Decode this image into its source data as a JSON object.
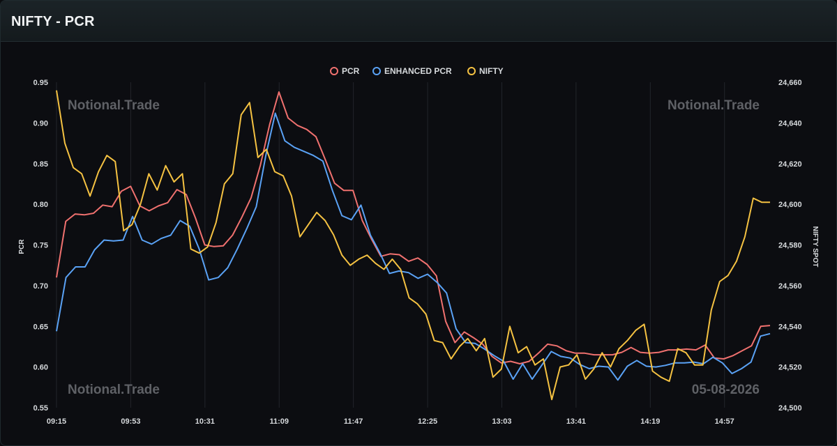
{
  "header": {
    "title": "NIFTY - PCR"
  },
  "watermarks": {
    "top_left": "Notional.Trade",
    "top_right": "Notional.Trade",
    "bottom_left": "Notional.Trade",
    "bottom_right": "05-08-2026"
  },
  "colors": {
    "background": "#0c0d11",
    "grid": "#22252b",
    "pcr": "#f0716f",
    "enhanced_pcr": "#5aa2f5",
    "nifty": "#f5c242"
  },
  "chart_data": {
    "type": "line",
    "title": "",
    "legend_position": "top-center",
    "grid": true,
    "x_tick_labels": [
      "09:15",
      "09:53",
      "10:31",
      "11:09",
      "11:47",
      "12:25",
      "13:03",
      "13:41",
      "14:19",
      "14:57"
    ],
    "x_count": 101,
    "left_axis": {
      "label": "PCR",
      "ylim": [
        0.55,
        0.95
      ],
      "ticks": [
        "0.55",
        "0.60",
        "0.65",
        "0.70",
        "0.75",
        "0.80",
        "0.85",
        "0.90",
        "0.95"
      ]
    },
    "right_axis": {
      "label": "NIFTY SPOT",
      "ylim": [
        24500,
        24660
      ],
      "ticks": [
        "24,500",
        "24,520",
        "24,540",
        "24,560",
        "24,580",
        "24,600",
        "24,620",
        "24,640",
        "24,660"
      ]
    },
    "series": [
      {
        "name": "PCR",
        "axis": "left",
        "values": [
          0.71,
          0.779,
          0.788,
          0.787,
          0.789,
          0.799,
          0.797,
          0.816,
          0.822,
          0.798,
          0.792,
          0.798,
          0.802,
          0.818,
          0.812,
          0.783,
          0.75,
          0.748,
          0.749,
          0.762,
          0.784,
          0.808,
          0.848,
          0.898,
          0.938,
          0.906,
          0.897,
          0.892,
          0.883,
          0.855,
          0.826,
          0.817,
          0.817,
          0.78,
          0.757,
          0.736,
          0.739,
          0.738,
          0.73,
          0.734,
          0.726,
          0.712,
          0.656,
          0.63,
          0.643,
          0.636,
          0.628,
          0.613,
          0.605,
          0.607,
          0.604,
          0.607,
          0.617,
          0.628,
          0.626,
          0.62,
          0.617,
          0.617,
          0.615,
          0.615,
          0.615,
          0.618,
          0.624,
          0.618,
          0.617,
          0.618,
          0.621,
          0.621,
          0.622,
          0.621,
          0.627,
          0.611,
          0.61,
          0.614,
          0.62,
          0.626,
          0.65,
          0.651
        ]
      },
      {
        "name": "ENHANCED PCR",
        "axis": "left",
        "values": [
          0.644,
          0.71,
          0.723,
          0.723,
          0.744,
          0.756,
          0.755,
          0.756,
          0.785,
          0.756,
          0.751,
          0.758,
          0.762,
          0.78,
          0.773,
          0.745,
          0.707,
          0.71,
          0.722,
          0.745,
          0.77,
          0.797,
          0.86,
          0.912,
          0.878,
          0.87,
          0.865,
          0.86,
          0.853,
          0.817,
          0.786,
          0.781,
          0.799,
          0.762,
          0.74,
          0.715,
          0.718,
          0.716,
          0.709,
          0.714,
          0.704,
          0.691,
          0.647,
          0.63,
          0.629,
          0.622,
          0.614,
          0.607,
          0.585,
          0.604,
          0.585,
          0.602,
          0.619,
          0.613,
          0.611,
          0.603,
          0.598,
          0.601,
          0.6,
          0.584,
          0.601,
          0.608,
          0.601,
          0.6,
          0.602,
          0.605,
          0.605,
          0.606,
          0.604,
          0.612,
          0.605,
          0.592,
          0.598,
          0.606,
          0.638,
          0.641
        ]
      },
      {
        "name": "NIFTY",
        "axis": "right",
        "values": [
          24656,
          24630,
          24618,
          24615,
          24604,
          24616,
          24624,
          24621,
          24587,
          24590,
          24600,
          24615,
          24607,
          24619,
          24611,
          24615,
          24578,
          24576,
          24579,
          24591,
          24610,
          24615,
          24644,
          24650,
          24623,
          24627,
          24616,
          24614,
          24604,
          24584,
          24590,
          24596,
          24592,
          24585,
          24575,
          24570,
          24573,
          24575,
          24571,
          24568,
          24573,
          24568,
          24554,
          24551,
          24546,
          24533,
          24532,
          24524,
          24530,
          24534,
          24528,
          24534,
          24515,
          24519,
          24540,
          24527,
          24530,
          24521,
          24524,
          24504,
          24520,
          24521,
          24526,
          24514,
          24519,
          24527,
          24520,
          24529,
          24533,
          24538,
          24541,
          24518,
          24515,
          24513,
          24529,
          24527,
          24521,
          24521,
          24548,
          24562,
          24565,
          24572,
          24584,
          24603,
          24601,
          24601
        ],
        "x_start": 0
      }
    ]
  },
  "legend": [
    {
      "label": "PCR",
      "color": "#f0716f"
    },
    {
      "label": "ENHANCED PCR",
      "color": "#5aa2f5"
    },
    {
      "label": "NIFTY",
      "color": "#f5c242"
    }
  ]
}
